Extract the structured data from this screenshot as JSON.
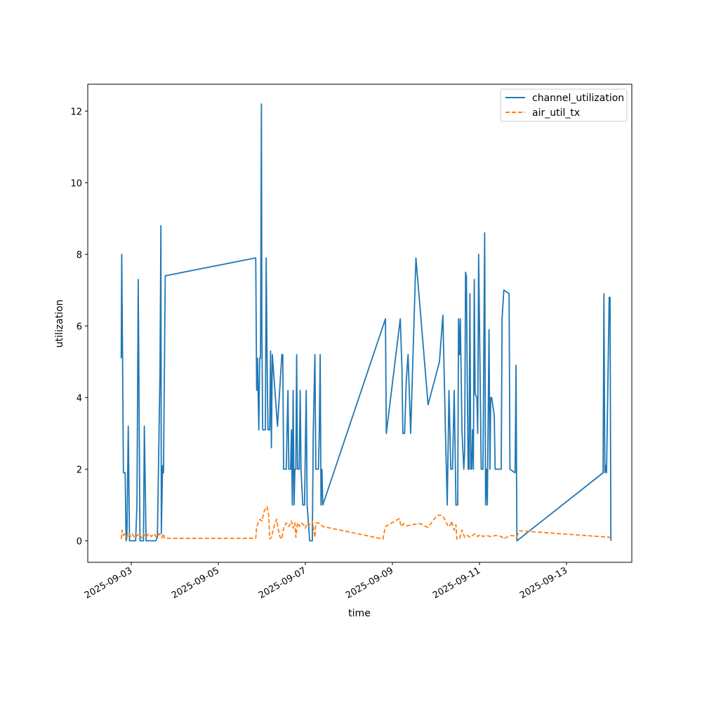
{
  "chart_data": {
    "type": "line",
    "title": "",
    "xlabel": "time",
    "ylabel": "utilization",
    "x_axis": {
      "type": "date",
      "range": [
        "2025-09-02T00:00",
        "2025-09-14T12:00"
      ],
      "ticks": [
        "2025-09-03",
        "2025-09-05",
        "2025-09-07",
        "2025-09-09",
        "2025-09-11",
        "2025-09-13"
      ]
    },
    "y_axis": {
      "range": [
        -0.6,
        12.75
      ],
      "ticks": [
        0,
        2,
        4,
        6,
        8,
        10,
        12
      ]
    },
    "grid": false,
    "legend": {
      "placement": "top-right"
    },
    "series": [
      {
        "name": "channel_utilization",
        "color": "#1f77b4",
        "style": "solid",
        "points": [
          [
            "2025-09-02T18:29",
            5.1
          ],
          [
            "2025-09-02T18:43",
            8.0
          ],
          [
            "2025-09-02T19:12",
            5.1
          ],
          [
            "2025-09-02T19:41",
            1.9
          ],
          [
            "2025-09-02T20:38",
            1.9
          ],
          [
            "2025-09-02T21:07",
            0.0
          ],
          [
            "2025-09-02T21:36",
            0.1
          ],
          [
            "2025-09-02T22:19",
            3.2
          ],
          [
            "2025-09-02T23:02",
            0.0
          ],
          [
            "2025-09-03T00:00",
            0.0
          ],
          [
            "2025-09-03T01:26",
            0.0
          ],
          [
            "2025-09-03T02:24",
            0.0
          ],
          [
            "2025-09-03T03:07",
            1.0
          ],
          [
            "2025-09-03T03:50",
            7.3
          ],
          [
            "2025-09-03T04:48",
            0.0
          ],
          [
            "2025-09-03T05:46",
            0.0
          ],
          [
            "2025-09-03T06:43",
            0.0
          ],
          [
            "2025-09-03T07:12",
            3.2
          ],
          [
            "2025-09-03T08:10",
            0.0
          ],
          [
            "2025-09-03T10:05",
            0.0
          ],
          [
            "2025-09-03T13:26",
            0.0
          ],
          [
            "2025-09-03T14:24",
            0.1
          ],
          [
            "2025-09-03T15:50",
            4.7
          ],
          [
            "2025-09-03T16:19",
            8.8
          ],
          [
            "2025-09-03T16:34",
            0.2
          ],
          [
            "2025-09-03T17:17",
            2.1
          ],
          [
            "2025-09-03T17:46",
            1.9
          ],
          [
            "2025-09-03T18:43",
            7.4
          ],
          [
            "2025-09-05T20:38",
            7.9
          ],
          [
            "2025-09-05T21:07",
            4.2
          ],
          [
            "2025-09-05T21:36",
            5.1
          ],
          [
            "2025-09-05T22:19",
            3.1
          ],
          [
            "2025-09-05T22:48",
            5.1
          ],
          [
            "2025-09-05T23:16",
            5.1
          ],
          [
            "2025-09-05T23:45",
            12.2
          ],
          [
            "2025-09-06T00:00",
            6.0
          ],
          [
            "2025-09-06T00:29",
            3.1
          ],
          [
            "2025-09-06T01:55",
            3.1
          ],
          [
            "2025-09-06T02:24",
            7.9
          ],
          [
            "2025-09-06T02:53",
            5.1
          ],
          [
            "2025-09-06T03:22",
            3.1
          ],
          [
            "2025-09-06T04:19",
            3.1
          ],
          [
            "2025-09-06T04:48",
            5.3
          ],
          [
            "2025-09-06T05:17",
            2.6
          ],
          [
            "2025-09-06T05:46",
            5.2
          ],
          [
            "2025-09-06T07:12",
            4.2
          ],
          [
            "2025-09-06T08:38",
            3.2
          ],
          [
            "2025-09-06T11:02",
            5.2
          ],
          [
            "2025-09-06T11:31",
            5.2
          ],
          [
            "2025-09-06T12:00",
            2.0
          ],
          [
            "2025-09-06T13:26",
            2.0
          ],
          [
            "2025-09-06T14:24",
            4.2
          ],
          [
            "2025-09-06T14:53",
            2.0
          ],
          [
            "2025-09-06T15:50",
            2.0
          ],
          [
            "2025-09-06T16:19",
            3.1
          ],
          [
            "2025-09-06T16:48",
            1.0
          ],
          [
            "2025-09-06T17:17",
            4.2
          ],
          [
            "2025-09-06T17:46",
            1.0
          ],
          [
            "2025-09-06T18:14",
            2.0
          ],
          [
            "2025-09-06T18:43",
            2.0
          ],
          [
            "2025-09-06T19:12",
            5.2
          ],
          [
            "2025-09-06T19:41",
            2.0
          ],
          [
            "2025-09-06T20:38",
            2.0
          ],
          [
            "2025-09-06T21:07",
            4.2
          ],
          [
            "2025-09-06T21:36",
            2.0
          ],
          [
            "2025-09-06T22:34",
            1.0
          ],
          [
            "2025-09-06T23:31",
            1.0
          ],
          [
            "2025-09-07T00:29",
            4.2
          ],
          [
            "2025-09-07T00:58",
            1.0
          ],
          [
            "2025-09-07T02:24",
            0.0
          ],
          [
            "2025-09-07T03:50",
            0.0
          ],
          [
            "2025-09-07T04:19",
            3.0
          ],
          [
            "2025-09-07T05:17",
            5.2
          ],
          [
            "2025-09-07T05:46",
            2.0
          ],
          [
            "2025-09-07T07:12",
            2.0
          ],
          [
            "2025-09-07T07:41",
            3.0
          ],
          [
            "2025-09-07T08:10",
            5.2
          ],
          [
            "2025-09-07T08:38",
            1.0
          ],
          [
            "2025-09-07T09:07",
            2.0
          ],
          [
            "2025-09-07T09:36",
            1.0
          ],
          [
            "2025-09-08T20:10",
            6.2
          ],
          [
            "2025-09-08T20:38",
            3.0
          ],
          [
            "2025-09-09T04:19",
            6.2
          ],
          [
            "2025-09-09T05:17",
            4.8
          ],
          [
            "2025-09-09T05:46",
            3.0
          ],
          [
            "2025-09-09T06:43",
            3.0
          ],
          [
            "2025-09-09T07:41",
            4.5
          ],
          [
            "2025-09-09T08:38",
            5.2
          ],
          [
            "2025-09-09T10:05",
            3.0
          ],
          [
            "2025-09-09T12:58",
            7.9
          ],
          [
            "2025-09-09T19:41",
            3.8
          ],
          [
            "2025-09-10T01:55",
            5.0
          ],
          [
            "2025-09-10T03:50",
            6.3
          ],
          [
            "2025-09-10T05:17",
            3.0
          ],
          [
            "2025-09-10T06:14",
            1.0
          ],
          [
            "2025-09-10T07:12",
            4.2
          ],
          [
            "2025-09-10T08:10",
            2.0
          ],
          [
            "2025-09-10T09:07",
            2.0
          ],
          [
            "2025-09-10T10:05",
            4.2
          ],
          [
            "2025-09-10T11:02",
            1.0
          ],
          [
            "2025-09-10T11:31",
            1.0
          ],
          [
            "2025-09-10T12:00",
            1.0
          ],
          [
            "2025-09-10T12:29",
            6.2
          ],
          [
            "2025-09-10T12:58",
            5.2
          ],
          [
            "2025-09-10T13:26",
            6.2
          ],
          [
            "2025-09-10T14:24",
            3.0
          ],
          [
            "2025-09-10T15:22",
            2.0
          ],
          [
            "2025-09-10T15:50",
            2.5
          ],
          [
            "2025-09-10T16:19",
            7.5
          ],
          [
            "2025-09-10T16:48",
            7.4
          ],
          [
            "2025-09-10T17:17",
            4.5
          ],
          [
            "2025-09-10T17:46",
            2.0
          ],
          [
            "2025-09-10T18:14",
            2.0
          ],
          [
            "2025-09-10T18:43",
            6.9
          ],
          [
            "2025-09-10T19:12",
            2.0
          ],
          [
            "2025-09-10T19:41",
            2.0
          ],
          [
            "2025-09-10T20:10",
            3.1
          ],
          [
            "2025-09-10T20:38",
            2.0
          ],
          [
            "2025-09-10T21:07",
            7.3
          ],
          [
            "2025-09-10T21:36",
            4.1
          ],
          [
            "2025-09-10T22:34",
            4.0
          ],
          [
            "2025-09-10T23:02",
            3.0
          ],
          [
            "2025-09-10T23:31",
            8.0
          ],
          [
            "2025-09-11T00:58",
            2.0
          ],
          [
            "2025-09-11T01:55",
            2.0
          ],
          [
            "2025-09-11T02:53",
            8.6
          ],
          [
            "2025-09-11T03:22",
            1.0
          ],
          [
            "2025-09-11T03:50",
            2.0
          ],
          [
            "2025-09-11T04:19",
            1.0
          ],
          [
            "2025-09-11T05:17",
            5.9
          ],
          [
            "2025-09-11T05:46",
            2.0
          ],
          [
            "2025-09-11T06:14",
            4.0
          ],
          [
            "2025-09-11T06:43",
            4.0
          ],
          [
            "2025-09-11T08:10",
            3.5
          ],
          [
            "2025-09-11T08:38",
            2.0
          ],
          [
            "2025-09-11T10:34",
            2.0
          ],
          [
            "2025-09-11T12:00",
            2.0
          ],
          [
            "2025-09-11T12:29",
            6.2
          ],
          [
            "2025-09-11T13:26",
            7.0
          ],
          [
            "2025-09-11T16:19",
            6.9
          ],
          [
            "2025-09-11T16:48",
            2.0
          ],
          [
            "2025-09-11T19:41",
            1.9
          ],
          [
            "2025-09-11T20:10",
            4.9
          ],
          [
            "2025-09-11T20:38",
            0.0
          ],
          [
            "2025-09-13T20:10",
            1.9
          ],
          [
            "2025-09-13T20:38",
            6.9
          ],
          [
            "2025-09-13T21:07",
            1.9
          ],
          [
            "2025-09-13T21:36",
            2.1
          ],
          [
            "2025-09-13T22:05",
            1.9
          ],
          [
            "2025-09-13T23:31",
            6.8
          ],
          [
            "2025-09-14T00:00",
            6.8
          ],
          [
            "2025-09-14T00:29",
            0.0
          ]
        ]
      },
      {
        "name": "air_util_tx",
        "color": "#ff7f0e",
        "style": "dashed",
        "points": [
          [
            "2025-09-02T18:29",
            0.05
          ],
          [
            "2025-09-02T18:58",
            0.3
          ],
          [
            "2025-09-02T19:41",
            0.15
          ],
          [
            "2025-09-02T20:38",
            0.2
          ],
          [
            "2025-09-02T21:36",
            0.1
          ],
          [
            "2025-09-02T22:34",
            0.2
          ],
          [
            "2025-09-02T23:31",
            0.12
          ],
          [
            "2025-09-03T00:29",
            0.2
          ],
          [
            "2025-09-03T01:55",
            0.08
          ],
          [
            "2025-09-03T03:22",
            0.15
          ],
          [
            "2025-09-03T04:19",
            0.2
          ],
          [
            "2025-09-03T05:46",
            0.08
          ],
          [
            "2025-09-03T06:43",
            0.2
          ],
          [
            "2025-09-03T08:10",
            0.1
          ],
          [
            "2025-09-03T09:36",
            0.2
          ],
          [
            "2025-09-03T11:02",
            0.12
          ],
          [
            "2025-09-03T12:29",
            0.2
          ],
          [
            "2025-09-03T13:55",
            0.1
          ],
          [
            "2025-09-03T15:22",
            0.2
          ],
          [
            "2025-09-03T16:48",
            0.08
          ],
          [
            "2025-09-03T17:46",
            0.2
          ],
          [
            "2025-09-03T18:14",
            0.07
          ],
          [
            "2025-09-05T20:38",
            0.07
          ],
          [
            "2025-09-05T21:07",
            0.4
          ],
          [
            "2025-09-05T22:05",
            0.5
          ],
          [
            "2025-09-05T23:02",
            0.6
          ],
          [
            "2025-09-06T00:00",
            0.55
          ],
          [
            "2025-09-06T01:26",
            0.85
          ],
          [
            "2025-09-06T02:53",
            0.95
          ],
          [
            "2025-09-06T03:50",
            0.7
          ],
          [
            "2025-09-06T04:19",
            0.05
          ],
          [
            "2025-09-06T05:17",
            0.1
          ],
          [
            "2025-09-06T06:43",
            0.4
          ],
          [
            "2025-09-06T08:10",
            0.6
          ],
          [
            "2025-09-06T09:07",
            0.3
          ],
          [
            "2025-09-06T10:05",
            0.1
          ],
          [
            "2025-09-06T11:02",
            0.05
          ],
          [
            "2025-09-06T12:00",
            0.35
          ],
          [
            "2025-09-06T13:26",
            0.5
          ],
          [
            "2025-09-06T14:53",
            0.4
          ],
          [
            "2025-09-06T16:19",
            0.55
          ],
          [
            "2025-09-06T17:17",
            0.35
          ],
          [
            "2025-09-06T18:14",
            0.5
          ],
          [
            "2025-09-06T18:43",
            0.1
          ],
          [
            "2025-09-06T19:41",
            0.5
          ],
          [
            "2025-09-06T20:38",
            0.4
          ],
          [
            "2025-09-06T21:36",
            0.5
          ],
          [
            "2025-09-06T23:02",
            0.45
          ],
          [
            "2025-09-07T00:00",
            0.35
          ],
          [
            "2025-09-07T00:58",
            0.5
          ],
          [
            "2025-09-07T02:24",
            0.45
          ],
          [
            "2025-09-07T03:50",
            0.55
          ],
          [
            "2025-09-07T05:17",
            0.1
          ],
          [
            "2025-09-07T05:46",
            0.5
          ],
          [
            "2025-09-07T07:12",
            0.5
          ],
          [
            "2025-09-07T08:38",
            0.45
          ],
          [
            "2025-09-07T09:36",
            0.4
          ],
          [
            "2025-09-08T18:43",
            0.05
          ],
          [
            "2025-09-08T20:10",
            0.4
          ],
          [
            "2025-09-09T01:26",
            0.55
          ],
          [
            "2025-09-09T03:50",
            0.62
          ],
          [
            "2025-09-09T04:48",
            0.4
          ],
          [
            "2025-09-09T06:14",
            0.48
          ],
          [
            "2025-09-09T08:10",
            0.42
          ],
          [
            "2025-09-09T10:34",
            0.45
          ],
          [
            "2025-09-09T15:22",
            0.48
          ],
          [
            "2025-09-09T18:14",
            0.4
          ],
          [
            "2025-09-09T19:41",
            0.38
          ],
          [
            "2025-09-10T00:29",
            0.7
          ],
          [
            "2025-09-10T01:55",
            0.72
          ],
          [
            "2025-09-10T03:50",
            0.7
          ],
          [
            "2025-09-10T05:17",
            0.55
          ],
          [
            "2025-09-10T06:43",
            0.4
          ],
          [
            "2025-09-10T08:10",
            0.45
          ],
          [
            "2025-09-10T08:38",
            0.55
          ],
          [
            "2025-09-10T10:05",
            0.3
          ],
          [
            "2025-09-10T11:02",
            0.45
          ],
          [
            "2025-09-10T11:31",
            0.05
          ],
          [
            "2025-09-10T12:58",
            0.05
          ],
          [
            "2025-09-10T14:24",
            0.3
          ],
          [
            "2025-09-10T15:50",
            0.1
          ],
          [
            "2025-09-10T17:17",
            0.15
          ],
          [
            "2025-09-10T18:43",
            0.1
          ],
          [
            "2025-09-10T20:10",
            0.15
          ],
          [
            "2025-09-10T21:36",
            0.2
          ],
          [
            "2025-09-10T23:02",
            0.12
          ],
          [
            "2025-09-11T00:29",
            0.18
          ],
          [
            "2025-09-11T01:55",
            0.12
          ],
          [
            "2025-09-11T03:22",
            0.15
          ],
          [
            "2025-09-11T06:14",
            0.12
          ],
          [
            "2025-09-11T09:07",
            0.15
          ],
          [
            "2025-09-11T12:00",
            0.12
          ],
          [
            "2025-09-11T13:26",
            0.05
          ],
          [
            "2025-09-11T14:53",
            0.1
          ],
          [
            "2025-09-11T17:46",
            0.15
          ],
          [
            "2025-09-11T20:38",
            0.12
          ],
          [
            "2025-09-11T22:05",
            0.28
          ],
          [
            "2025-09-13T23:31",
            0.1
          ],
          [
            "2025-09-14T00:29",
            0.1
          ]
        ]
      }
    ]
  }
}
